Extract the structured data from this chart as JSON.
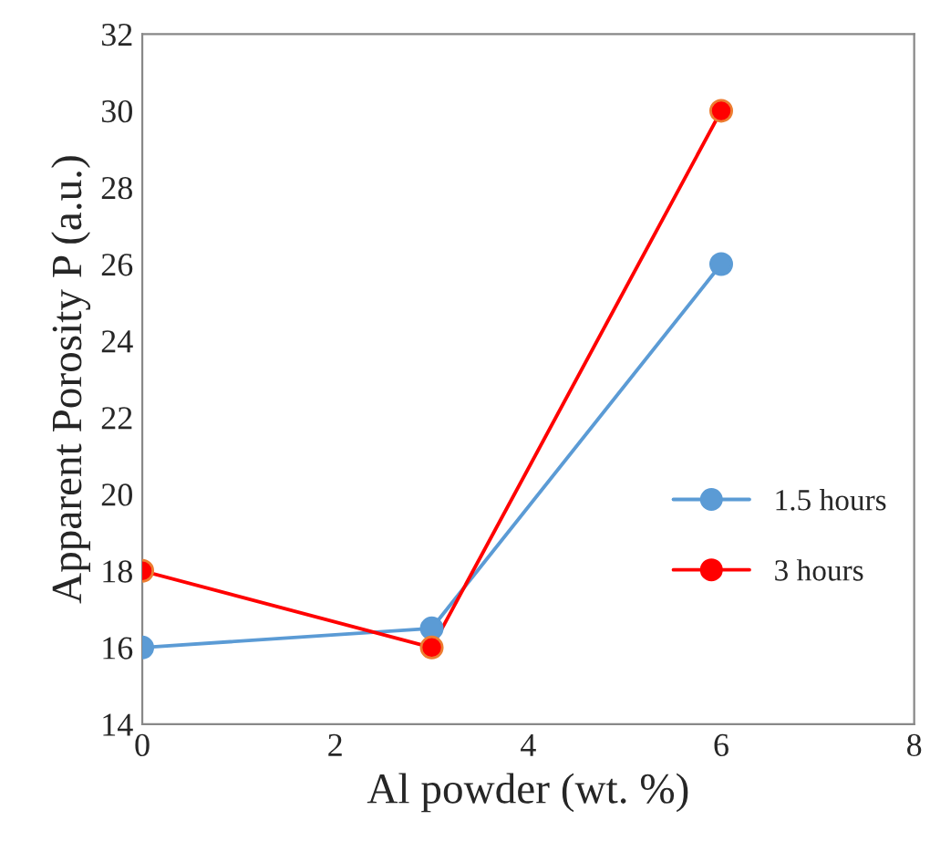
{
  "chart_data": {
    "type": "line",
    "xlabel": "Al powder (wt. %)",
    "ylabel": "Apparent Porosity P (a.u.)",
    "x": [
      0,
      3,
      6
    ],
    "series": [
      {
        "name": "1.5 hours",
        "color": "#5b9bd5",
        "values": [
          16,
          16.5,
          26
        ]
      },
      {
        "name": "3 hours",
        "color": "#ff0000",
        "values": [
          18,
          16,
          30
        ]
      }
    ],
    "xlim": [
      0,
      8
    ],
    "xticks": [
      0,
      2,
      4,
      6,
      8
    ],
    "ylim": [
      14,
      32
    ],
    "yticks": [
      14,
      16,
      18,
      20,
      22,
      24,
      26,
      28,
      30,
      32
    ],
    "grid": false,
    "legend": "right",
    "marker": "circle",
    "line_style": "solid"
  }
}
